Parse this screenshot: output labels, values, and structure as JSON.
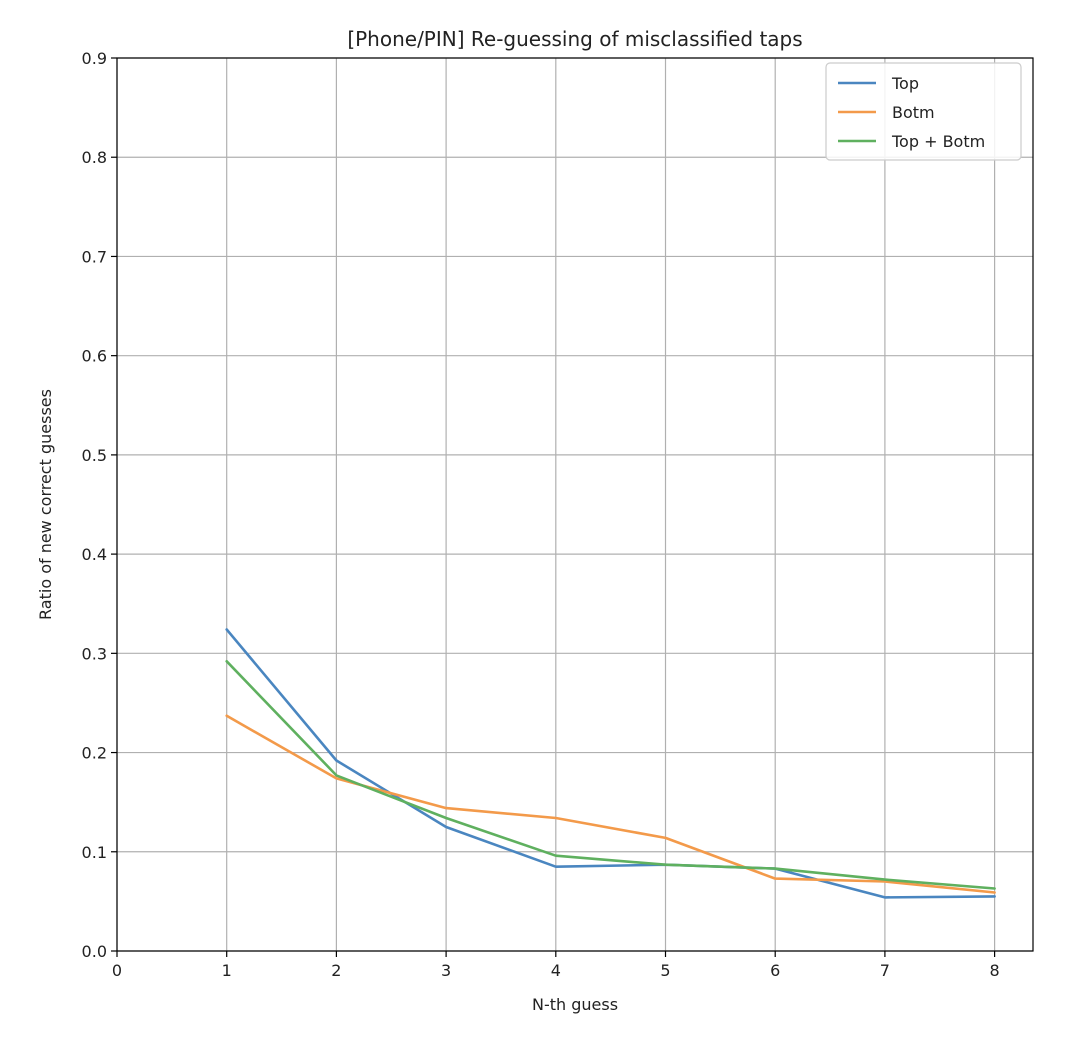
{
  "chart_data": {
    "type": "line",
    "title": "[Phone/PIN] Re-guessing of misclassified taps",
    "xlabel": "N-th guess",
    "ylabel": "Ratio of new correct guesses",
    "xlim": [
      0,
      8.35
    ],
    "ylim": [
      0,
      0.9
    ],
    "xticks": [
      0,
      1,
      2,
      3,
      4,
      5,
      6,
      7,
      8
    ],
    "yticks": [
      0.0,
      0.1,
      0.2,
      0.3,
      0.4,
      0.5,
      0.6,
      0.7,
      0.8,
      0.9
    ],
    "xtick_labels": [
      "0",
      "1",
      "2",
      "3",
      "4",
      "5",
      "6",
      "7",
      "8"
    ],
    "ytick_labels": [
      "0.0",
      "0.1",
      "0.2",
      "0.3",
      "0.4",
      "0.5",
      "0.6",
      "0.7",
      "0.8",
      "0.9"
    ],
    "grid": true,
    "legend_position": "top-right",
    "x": [
      1,
      2,
      3,
      4,
      5,
      6,
      7,
      8
    ],
    "series": [
      {
        "name": "Top",
        "color": "#4a86c0",
        "values": [
          0.324,
          0.192,
          0.125,
          0.085,
          0.087,
          0.083,
          0.054,
          0.055
        ]
      },
      {
        "name": "Botm",
        "color": "#f39a4a",
        "values": [
          0.237,
          0.174,
          0.144,
          0.134,
          0.114,
          0.073,
          0.07,
          0.059
        ]
      },
      {
        "name": "Top + Botm",
        "color": "#5fb05f",
        "values": [
          0.292,
          0.177,
          0.134,
          0.096,
          0.087,
          0.083,
          0.072,
          0.063
        ]
      }
    ]
  }
}
